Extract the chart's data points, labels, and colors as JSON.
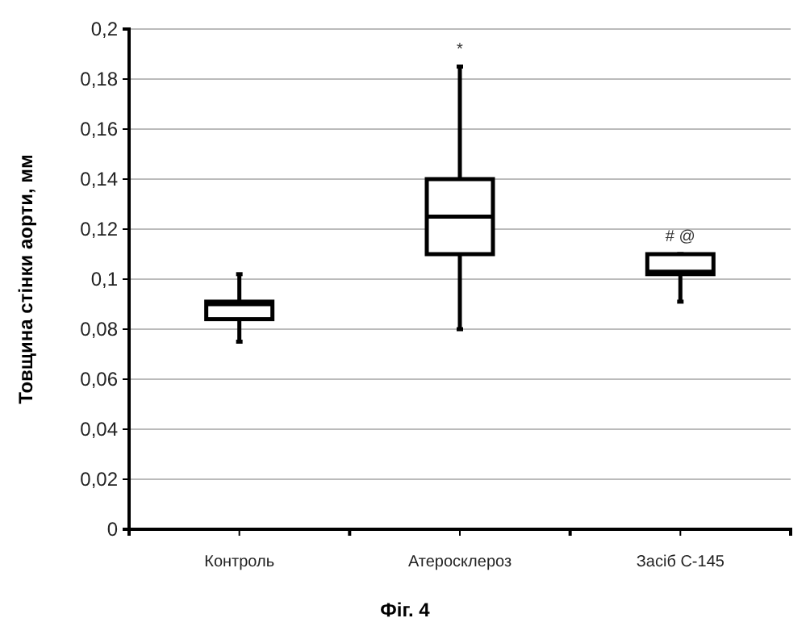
{
  "chart_data": {
    "type": "box",
    "ylabel": "Товщина стінки аорти, мм",
    "categories": [
      "Контроль",
      "Атеросклероз",
      "Засіб С-145"
    ],
    "boxes": [
      {
        "low": 0.075,
        "q1": 0.084,
        "median": 0.09,
        "q3": 0.091,
        "high": 0.102
      },
      {
        "low": 0.08,
        "q1": 0.11,
        "median": 0.125,
        "q3": 0.14,
        "high": 0.185
      },
      {
        "low": 0.091,
        "q1": 0.102,
        "median": 0.103,
        "q3": 0.11,
        "high": 0.11
      }
    ],
    "color": "#000000",
    "ylim": [
      0,
      0.2
    ],
    "yticks": [
      {
        "value": 0,
        "label": "0"
      },
      {
        "value": 0.02,
        "label": "0,02"
      },
      {
        "value": 0.04,
        "label": "0,04"
      },
      {
        "value": 0.06,
        "label": "0,06"
      },
      {
        "value": 0.08,
        "label": "0,08"
      },
      {
        "value": 0.1,
        "label": "0,1"
      },
      {
        "value": 0.12,
        "label": "0,12"
      },
      {
        "value": 0.14,
        "label": "0,14"
      },
      {
        "value": 0.16,
        "label": "0,16"
      },
      {
        "value": 0.18,
        "label": "0,18"
      },
      {
        "value": 0.2,
        "label": "0,2"
      }
    ],
    "grid": "y",
    "annotations": [
      "*",
      "# @",
      "Фіг. 4"
    ]
  }
}
